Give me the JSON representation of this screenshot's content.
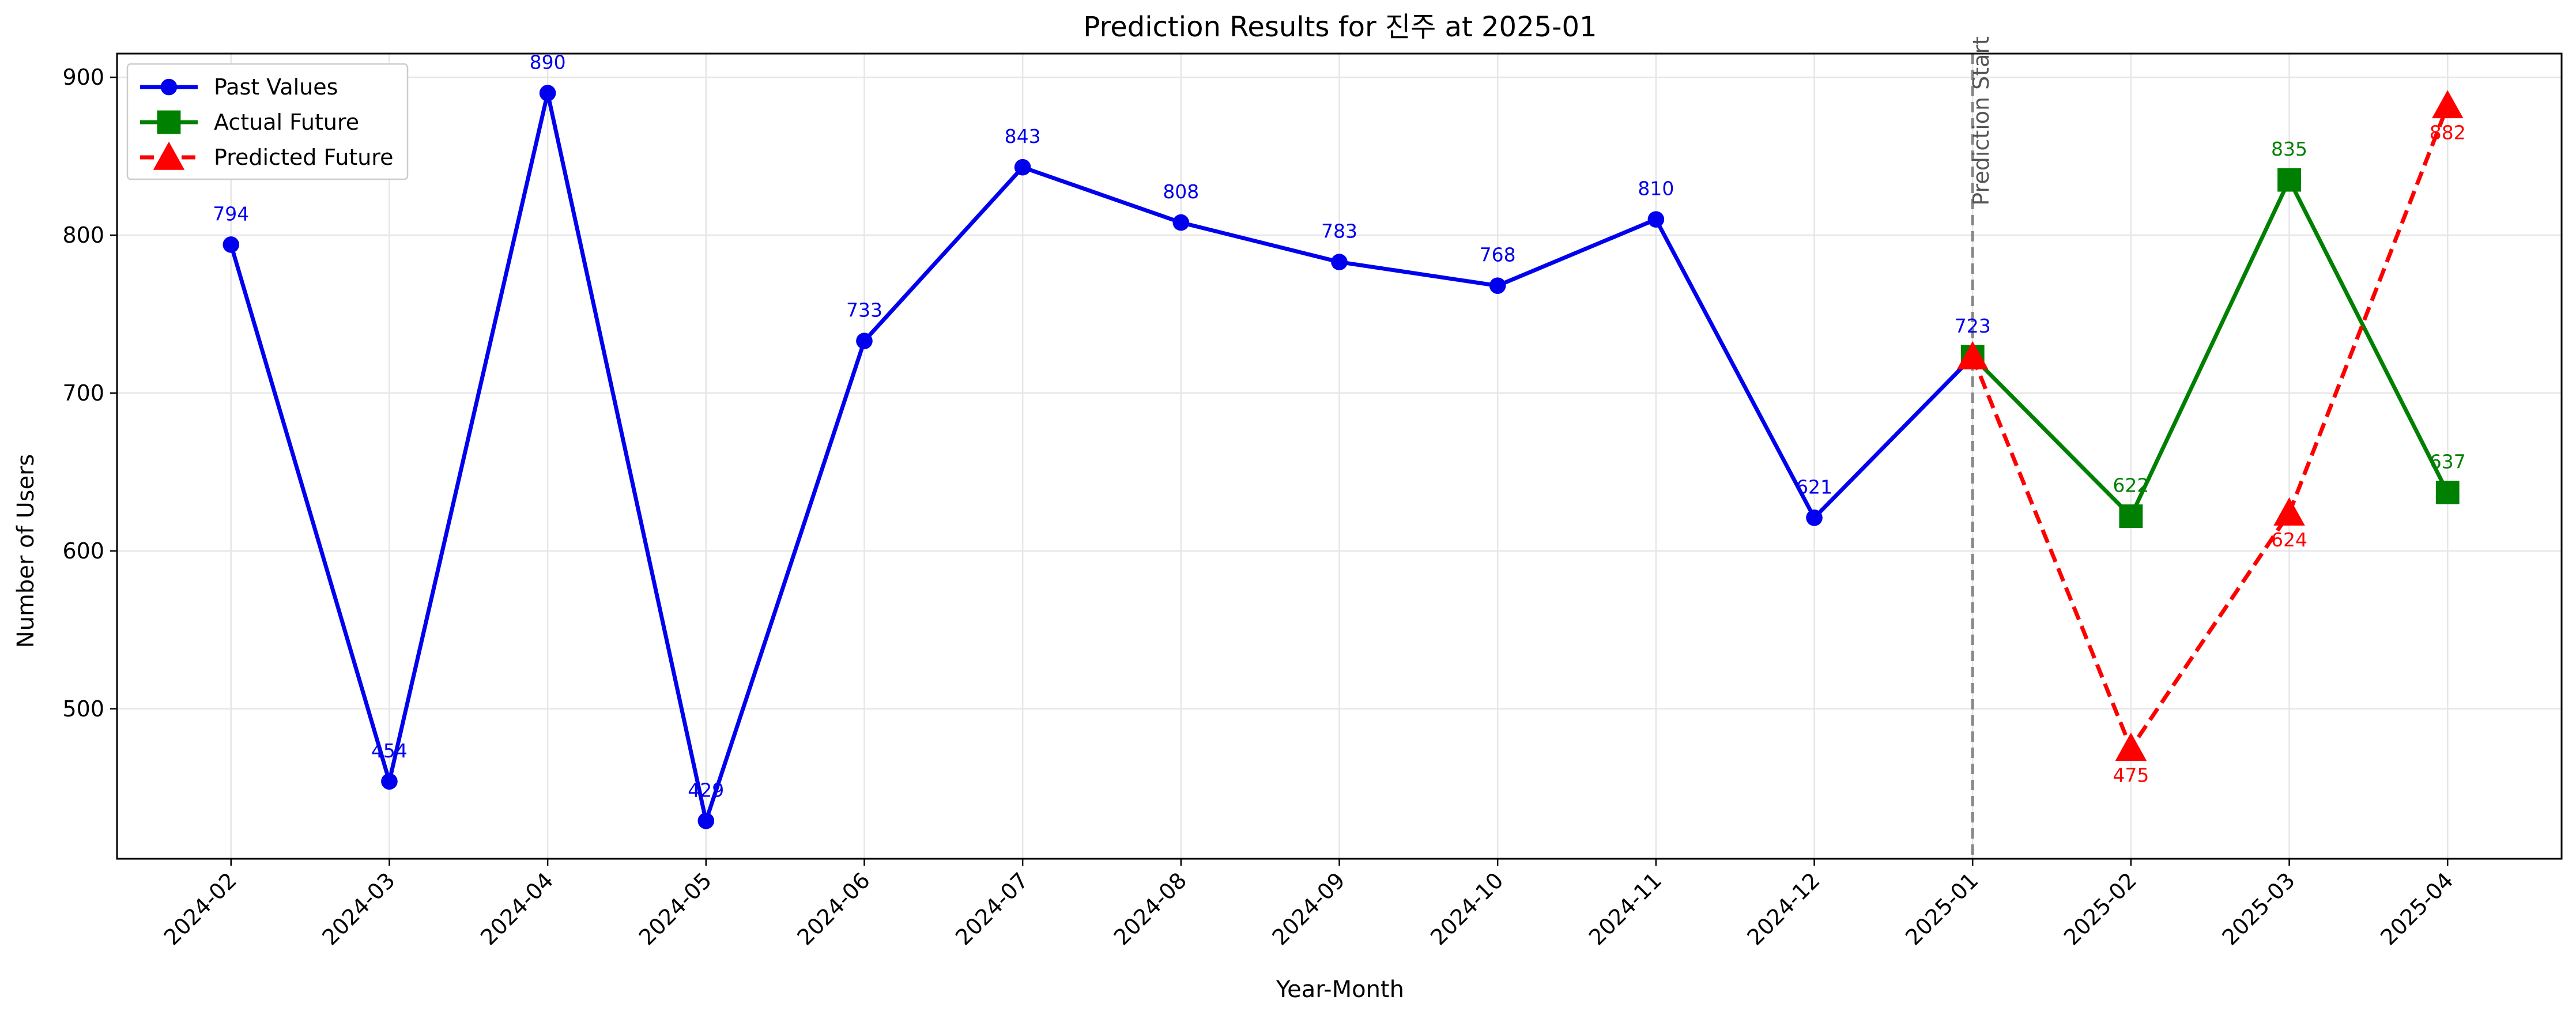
{
  "chart_data": {
    "type": "line",
    "title": "Prediction Results for 진주 at 2025-01",
    "xlabel": "Year-Month",
    "ylabel": "Number of Users",
    "categories": [
      "2024-02",
      "2024-03",
      "2024-04",
      "2024-05",
      "2024-06",
      "2024-07",
      "2024-08",
      "2024-09",
      "2024-10",
      "2024-11",
      "2024-12",
      "2025-01",
      "2025-02",
      "2025-03",
      "2025-04"
    ],
    "ylim": [
      405,
      915
    ],
    "yticks": [
      500,
      600,
      700,
      800,
      900
    ],
    "grid": true,
    "legend_position": "top-left",
    "series": [
      {
        "name": "Past Values",
        "color": "#0000ee",
        "marker": "circle",
        "style": "solid",
        "x": [
          "2024-02",
          "2024-03",
          "2024-04",
          "2024-05",
          "2024-06",
          "2024-07",
          "2024-08",
          "2024-09",
          "2024-10",
          "2024-11",
          "2024-12",
          "2025-01"
        ],
        "values": [
          794,
          454,
          890,
          429,
          733,
          843,
          808,
          783,
          768,
          810,
          621,
          723
        ],
        "labels": [
          "794",
          "454",
          "890",
          "429",
          "733",
          "843",
          "808",
          "783",
          "768",
          "810",
          "621",
          "723"
        ],
        "label_pos": "above"
      },
      {
        "name": "Actual Future",
        "color": "#008000",
        "marker": "square",
        "style": "solid",
        "x": [
          "2025-01",
          "2025-02",
          "2025-03",
          "2025-04"
        ],
        "values": [
          723,
          622,
          835,
          637
        ],
        "labels": [
          "",
          "622",
          "835",
          "637"
        ],
        "label_pos": "above"
      },
      {
        "name": "Predicted Future",
        "color": "#ff0000",
        "marker": "triangle",
        "style": "dashed",
        "x": [
          "2025-01",
          "2025-02",
          "2025-03",
          "2025-04"
        ],
        "values": [
          723,
          475,
          624,
          882
        ],
        "labels": [
          "",
          "475",
          "624",
          "882"
        ],
        "label_pos": "below"
      }
    ],
    "annotations": [
      {
        "type": "vline",
        "x": "2025-01",
        "text": "Prediction Start",
        "color": "#888888"
      }
    ]
  }
}
